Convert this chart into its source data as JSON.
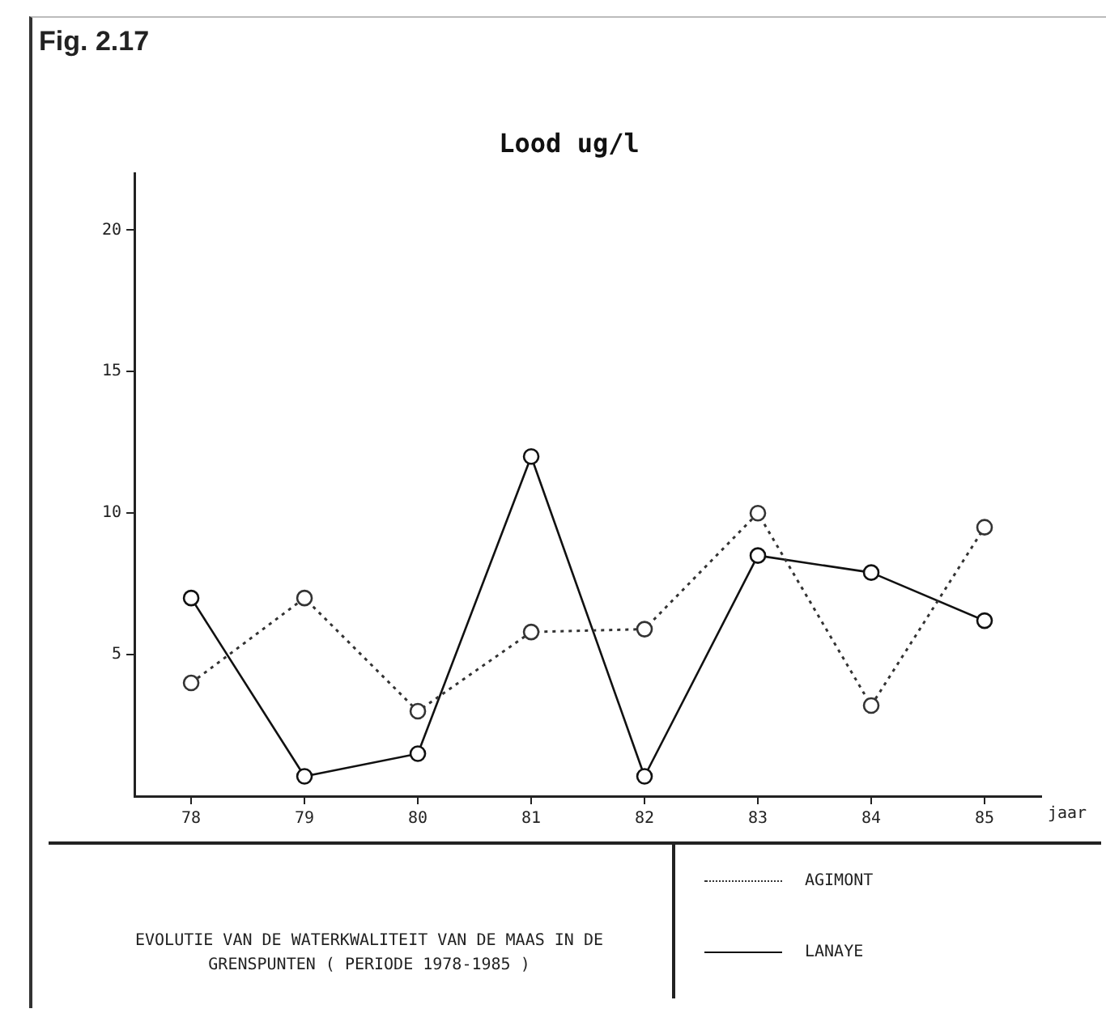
{
  "chart_data": {
    "type": "line",
    "title": "Fig. 2.17",
    "subtitle": "Lood ug/l",
    "xlabel": "jaar",
    "categories": [
      "78",
      "79",
      "80",
      "81",
      "82",
      "83",
      "84",
      "85"
    ],
    "series": [
      {
        "name": "AGIMONT",
        "color": "#333333",
        "line_style": "dotted",
        "values": [
          4,
          7,
          3,
          5.8,
          5.9,
          10,
          3.2,
          9.5
        ]
      },
      {
        "name": "LANAYE",
        "color": "#111111",
        "line_style": "solid",
        "values": [
          7,
          0.7,
          1.5,
          12,
          0.7,
          8.5,
          7.9,
          6.2
        ]
      }
    ],
    "ylim": [
      0,
      22
    ],
    "yticks": [
      5,
      10,
      15,
      20
    ],
    "grid": false,
    "legend": "bottom right",
    "marker": "circle",
    "annotations": [
      "EVOLUTIE VAN DE WATERKWALITEIT VAN DE MAAS IN DE GRENSPUNTEN ( PERIODE 1978-1985 )"
    ]
  }
}
